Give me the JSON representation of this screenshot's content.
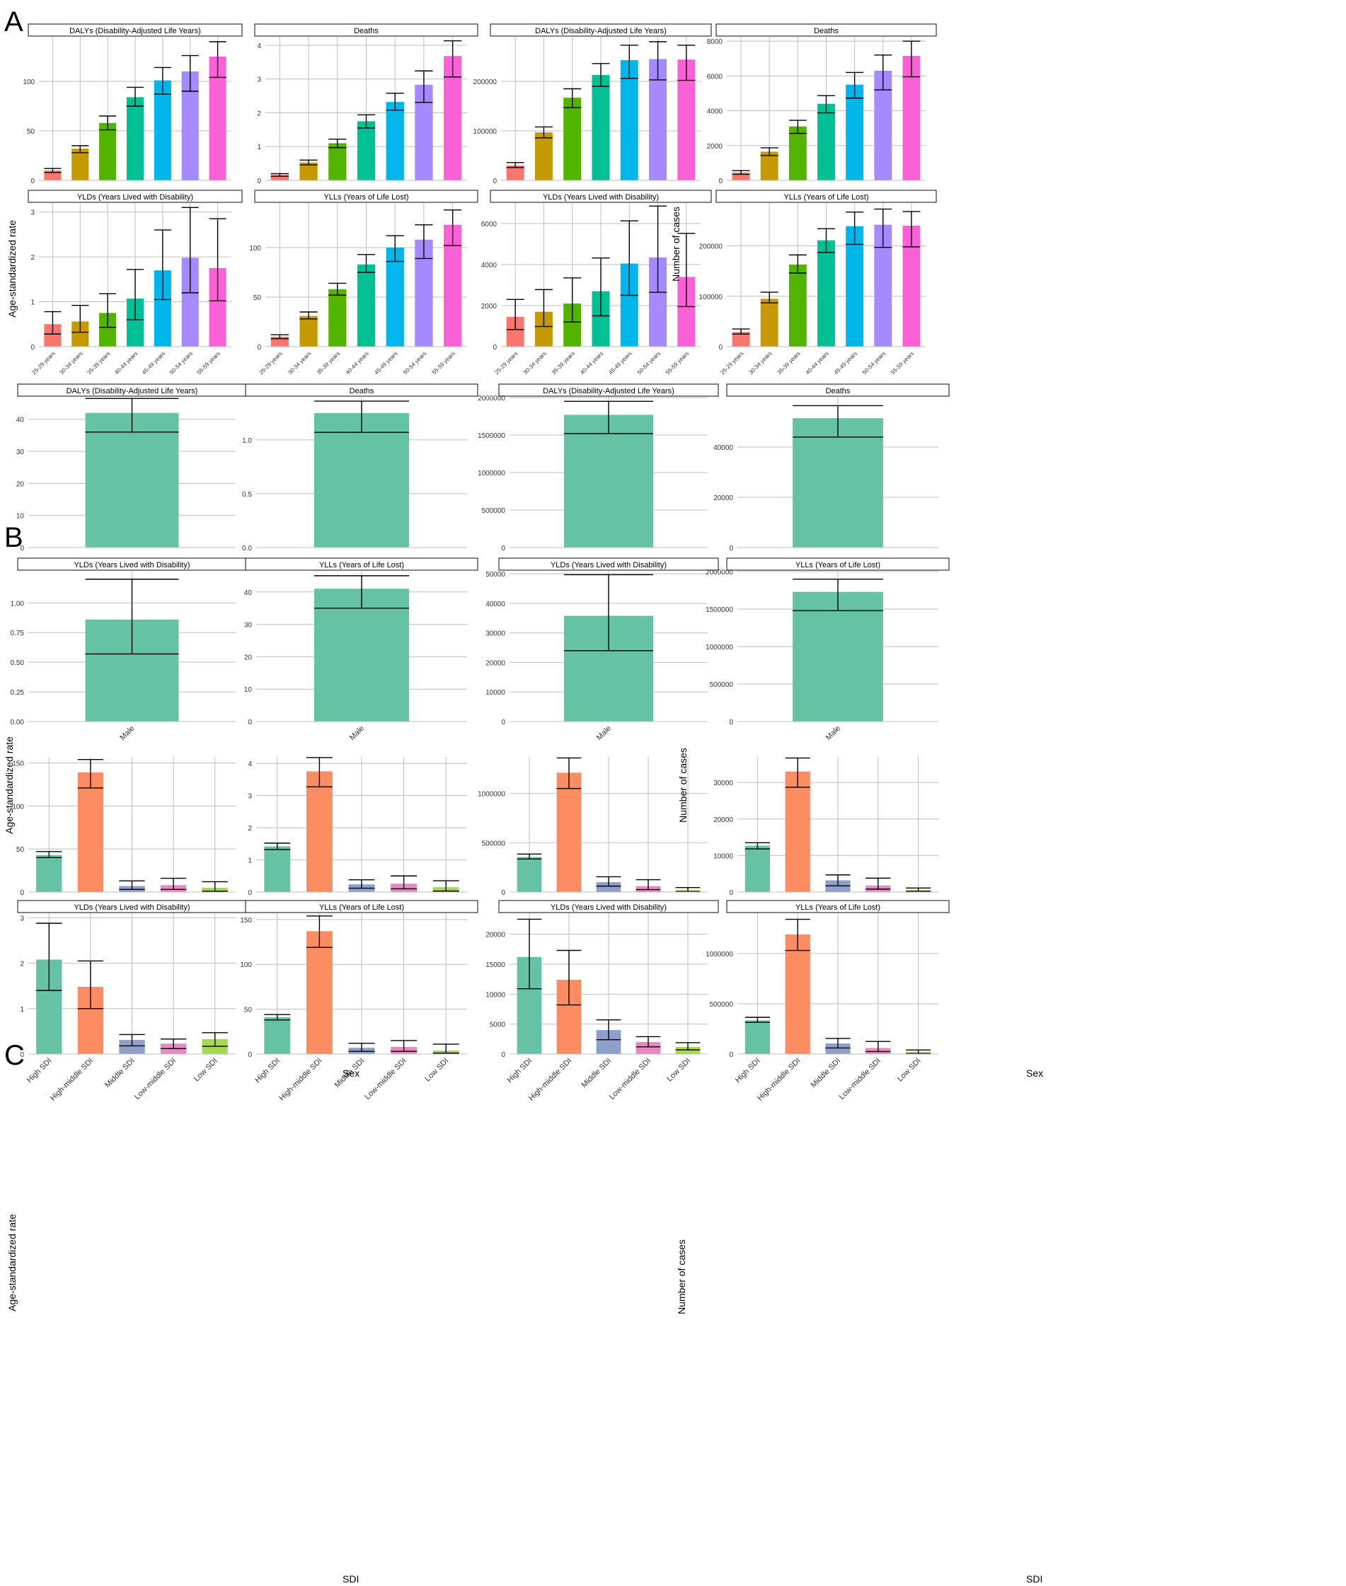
{
  "panel_labels": {
    "A": "A",
    "B": "B",
    "C": "C"
  },
  "y_titles": {
    "rate": "Age-standardized rate",
    "cases": "Number of cases"
  },
  "x_titles": {
    "sex": "Sex",
    "sdi": "SDI"
  },
  "colors": {
    "age": [
      "#F8766D",
      "#C49A00",
      "#53B400",
      "#00C094",
      "#00B6EB",
      "#A58AFF",
      "#FB61D7"
    ],
    "sex": [
      "#66C2A5"
    ],
    "sdi": [
      "#66C2A5",
      "#FC8D62",
      "#8DA0CB",
      "#E78AC3",
      "#A6D854"
    ],
    "strip_border": "#333333",
    "grid": "#bdbdbd",
    "error_bar": "#000000"
  },
  "chart_data": [
    {
      "id": "A-rate-dalys",
      "type": "bar",
      "title": "DALYs (Disability-Adjusted Life Years)",
      "categories": [
        "25-29 years",
        "30-34 years",
        "35-39 years",
        "40-44 years",
        "45-49 years",
        "50-54 years",
        "55-59 years"
      ],
      "values": [
        10,
        32,
        58,
        84,
        101,
        110,
        125
      ],
      "lower": [
        8,
        28,
        51,
        75,
        87,
        90,
        104
      ],
      "upper": [
        12,
        35,
        65,
        94,
        114,
        126,
        140
      ],
      "yticks": [
        0,
        50,
        100
      ],
      "ylim": [
        0,
        145
      ],
      "xlabel": "",
      "ylabel": "Age-standardized rate"
    },
    {
      "id": "A-rate-deaths",
      "type": "bar",
      "title": "Deaths",
      "categories": [
        "25-29 years",
        "30-34 years",
        "35-39 years",
        "40-44 years",
        "45-49 years",
        "50-54 years",
        "55-59 years"
      ],
      "values": [
        0.17,
        0.53,
        1.1,
        1.75,
        2.32,
        2.83,
        3.68
      ],
      "lower": [
        0.12,
        0.46,
        0.97,
        1.55,
        2.08,
        2.31,
        3.06
      ],
      "upper": [
        0.2,
        0.6,
        1.22,
        1.94,
        2.58,
        3.24,
        4.13
      ],
      "yticks": [
        0,
        1,
        2,
        3,
        4
      ],
      "ylim": [
        0,
        4.25
      ],
      "xlabel": "",
      "ylabel": "Age-standardized rate"
    },
    {
      "id": "A-cases-dalys",
      "type": "bar",
      "title": "DALYs (Disability-Adjusted Life Years)",
      "categories": [
        "25-29 years",
        "30-34 years",
        "35-39 years",
        "40-44 years",
        "45-49 years",
        "50-54 years",
        "55-59 years"
      ],
      "values": [
        30000,
        97000,
        167000,
        213000,
        243000,
        245000,
        244000
      ],
      "lower": [
        26000,
        86000,
        147000,
        190000,
        206000,
        203000,
        202000
      ],
      "upper": [
        36000,
        108000,
        185000,
        236000,
        273000,
        280000,
        273000
      ],
      "yticks": [
        0,
        100000,
        200000
      ],
      "ylim": [
        0,
        290000
      ],
      "xlabel": "",
      "ylabel": "Number of cases"
    },
    {
      "id": "A-cases-deaths",
      "type": "bar",
      "title": "Deaths",
      "categories": [
        "25-29 years",
        "30-34 years",
        "35-39 years",
        "40-44 years",
        "45-49 years",
        "50-54 years",
        "55-59 years"
      ],
      "values": [
        450,
        1650,
        3100,
        4400,
        5500,
        6300,
        7150
      ],
      "lower": [
        350,
        1430,
        2700,
        3880,
        4730,
        5200,
        5950
      ],
      "upper": [
        560,
        1870,
        3450,
        4870,
        6200,
        7200,
        8000
      ],
      "yticks": [
        0,
        2000,
        4000,
        6000,
        8000
      ],
      "ylim": [
        0,
        8250
      ],
      "xlabel": "",
      "ylabel": "Number of cases"
    },
    {
      "id": "A-rate-ylds",
      "type": "bar",
      "title": "YLDs (Years Lived with Disability)",
      "categories": [
        "25-29 years",
        "30-34 years",
        "35-39 years",
        "40-44 years",
        "45-49 years",
        "50-54 years",
        "55-59 years"
      ],
      "values": [
        0.5,
        0.56,
        0.75,
        1.07,
        1.7,
        1.98,
        1.75
      ],
      "lower": [
        0.28,
        0.32,
        0.43,
        0.6,
        1.05,
        1.2,
        1.02
      ],
      "upper": [
        0.78,
        0.92,
        1.18,
        1.72,
        2.6,
        3.1,
        2.85
      ],
      "yticks": [
        0,
        1,
        2,
        3
      ],
      "ylim": [
        0,
        3.2
      ],
      "xlabel": "",
      "ylabel": "Age-standardized rate"
    },
    {
      "id": "A-rate-ylls",
      "type": "bar",
      "title": "YLLs (Years of Life Lost)",
      "categories": [
        "25-29 years",
        "30-34 years",
        "35-39 years",
        "40-44 years",
        "45-49 years",
        "50-54 years",
        "55-59 years"
      ],
      "values": [
        10,
        31,
        58,
        83,
        100,
        108,
        123
      ],
      "lower": [
        8,
        28,
        52,
        75,
        86,
        89,
        102
      ],
      "upper": [
        12,
        35,
        64,
        93,
        112,
        123,
        138
      ],
      "yticks": [
        0,
        50,
        100
      ],
      "ylim": [
        0,
        145
      ],
      "xlabel": "",
      "ylabel": "Age-standardized rate"
    },
    {
      "id": "A-cases-ylds",
      "type": "bar",
      "title": "YLDs (Years Lived with Disability)",
      "categories": [
        "25-29 years",
        "30-34 years",
        "35-39 years",
        "40-44 years",
        "45-49 years",
        "50-54 years",
        "55-59 years"
      ],
      "values": [
        1450,
        1700,
        2100,
        2700,
        4050,
        4350,
        3400
      ],
      "lower": [
        830,
        980,
        1200,
        1500,
        2500,
        2650,
        1950
      ],
      "upper": [
        2300,
        2780,
        3350,
        4320,
        6130,
        6850,
        5520
      ],
      "yticks": [
        0,
        2000,
        4000,
        6000
      ],
      "ylim": [
        0,
        7000
      ],
      "xlabel": "",
      "ylabel": "Number of cases"
    },
    {
      "id": "A-cases-ylls",
      "type": "bar",
      "title": "YLLs (Years of Life Lost)",
      "categories": [
        "25-29 years",
        "30-34 years",
        "35-39 years",
        "40-44 years",
        "45-49 years",
        "50-54 years",
        "55-59 years"
      ],
      "values": [
        29000,
        95000,
        163000,
        211000,
        239000,
        242000,
        240000
      ],
      "lower": [
        25000,
        87000,
        146000,
        187000,
        203000,
        197000,
        198000
      ],
      "upper": [
        35000,
        108000,
        182000,
        234000,
        267000,
        273000,
        268000
      ],
      "yticks": [
        0,
        100000,
        200000
      ],
      "ylim": [
        0,
        285000
      ],
      "xlabel": "",
      "ylabel": "Number of cases"
    },
    {
      "id": "B-rate-dalys",
      "type": "bar",
      "title": "DALYs (Disability-Adjusted Life Years)",
      "categories": [
        "Male"
      ],
      "values": [
        42
      ],
      "lower": [
        36
      ],
      "upper": [
        46.5
      ],
      "yticks": [
        0,
        10,
        20,
        30,
        40
      ],
      "ylim": [
        0,
        47
      ],
      "xlabel": "",
      "ylabel": "Age-standardized rate"
    },
    {
      "id": "B-rate-deaths",
      "type": "bar",
      "title": "Deaths",
      "categories": [
        "Male"
      ],
      "values": [
        1.25
      ],
      "lower": [
        1.07
      ],
      "upper": [
        1.36
      ],
      "yticks": [
        0,
        0.5,
        1
      ],
      "ylim": [
        0,
        1.4
      ],
      "ytick_labels": [
        "0.0",
        "0.5",
        "1.0"
      ],
      "xlabel": "",
      "ylabel": "Age-standardized rate"
    },
    {
      "id": "B-cases-dalys",
      "type": "bar",
      "title": "DALYs (Disability-Adjusted Life Years)",
      "categories": [
        "Male"
      ],
      "values": [
        1770000
      ],
      "lower": [
        1520000
      ],
      "upper": [
        1950000
      ],
      "yticks": [
        0,
        500000,
        1000000,
        1500000,
        2000000
      ],
      "ylim": [
        0,
        2010000
      ],
      "xlabel": "",
      "ylabel": "Number of cases"
    },
    {
      "id": "B-cases-deaths",
      "type": "bar",
      "title": "Deaths",
      "categories": [
        "Male"
      ],
      "values": [
        51500
      ],
      "lower": [
        44000
      ],
      "upper": [
        56500
      ],
      "yticks": [
        0,
        20000,
        40000
      ],
      "ylim": [
        0,
        60000
      ],
      "xlabel": "",
      "ylabel": "Number of cases"
    },
    {
      "id": "B-rate-ylds",
      "type": "bar",
      "title": "YLDs (Years Lived with Disability)",
      "categories": [
        "Male"
      ],
      "values": [
        0.86
      ],
      "lower": [
        0.57
      ],
      "upper": [
        1.2
      ],
      "yticks": [
        0,
        0.25,
        0.5,
        0.75,
        1
      ],
      "ylim": [
        0,
        1.27
      ],
      "ytick_labels": [
        "0.00",
        "0.25",
        "0.50",
        "0.75",
        "1.00"
      ],
      "xlabel": "Sex",
      "ylabel": "Age-standardized rate"
    },
    {
      "id": "B-rate-ylls",
      "type": "bar",
      "title": "YLLs (Years of Life Lost)",
      "categories": [
        "Male"
      ],
      "values": [
        41
      ],
      "lower": [
        35
      ],
      "upper": [
        45
      ],
      "yticks": [
        0,
        10,
        20,
        30,
        40
      ],
      "ylim": [
        0,
        46.5
      ],
      "xlabel": "Sex",
      "ylabel": "Age-standardized rate"
    },
    {
      "id": "B-cases-ylds",
      "type": "bar",
      "title": "YLDs (Years Lived with Disability)",
      "categories": [
        "Male"
      ],
      "values": [
        35800
      ],
      "lower": [
        24000
      ],
      "upper": [
        49700
      ],
      "yticks": [
        0,
        10000,
        20000,
        30000,
        40000,
        50000
      ],
      "ylim": [
        0,
        51000
      ],
      "xlabel": "Sex",
      "ylabel": "Number of cases"
    },
    {
      "id": "B-cases-ylls",
      "type": "bar",
      "title": "YLLs (Years of Life Lost)",
      "categories": [
        "Male"
      ],
      "values": [
        1730000
      ],
      "lower": [
        1480000
      ],
      "upper": [
        1900000
      ],
      "yticks": [
        0,
        500000,
        1000000,
        1500000,
        2000000
      ],
      "ylim": [
        0,
        2010000
      ],
      "xlabel": "Sex",
      "ylabel": "Number of cases"
    },
    {
      "id": "C-rate-dalys",
      "type": "bar",
      "title": "",
      "categories": [
        "High SDI",
        "High-middle SDI",
        "Middle SDI",
        "Low-middle SDI",
        "Low SDI"
      ],
      "values": [
        43,
        139,
        7,
        8,
        5
      ],
      "lower": [
        40,
        121,
        3,
        3,
        1
      ],
      "upper": [
        47,
        154,
        13,
        16,
        12
      ],
      "yticks": [
        0,
        50,
        100,
        150
      ],
      "ylim": [
        0,
        157
      ],
      "xlabel": "",
      "ylabel": "Age-standardized rate"
    },
    {
      "id": "C-rate-deaths",
      "type": "bar",
      "title": "",
      "categories": [
        "High SDI",
        "High-middle SDI",
        "Middle SDI",
        "Low-middle SDI",
        "Low SDI"
      ],
      "values": [
        1.42,
        3.75,
        0.24,
        0.26,
        0.15
      ],
      "lower": [
        1.32,
        3.27,
        0.12,
        0.1,
        0.03
      ],
      "upper": [
        1.52,
        4.18,
        0.38,
        0.5,
        0.35
      ],
      "yticks": [
        0,
        1,
        2,
        3,
        4
      ],
      "ylim": [
        0,
        4.2
      ],
      "xlabel": "",
      "ylabel": "Age-standardized rate"
    },
    {
      "id": "C-cases-dalys",
      "type": "bar",
      "title": "",
      "categories": [
        "High SDI",
        "High-middle SDI",
        "Middle SDI",
        "Low-middle SDI",
        "Low SDI"
      ],
      "values": [
        355000,
        1210000,
        100000,
        60000,
        20000
      ],
      "lower": [
        335000,
        1050000,
        60000,
        25000,
        5000
      ],
      "upper": [
        385000,
        1360000,
        155000,
        125000,
        45000
      ],
      "yticks": [
        0,
        500000,
        1000000
      ],
      "ylim": [
        0,
        1370000
      ],
      "xlabel": "",
      "ylabel": "Number of cases"
    },
    {
      "id": "C-cases-deaths",
      "type": "bar",
      "title": "",
      "categories": [
        "High SDI",
        "High-middle SDI",
        "Middle SDI",
        "Low-middle SDI",
        "Low SDI"
      ],
      "values": [
        12700,
        33000,
        3200,
        1800,
        500
      ],
      "lower": [
        11800,
        28700,
        1700,
        800,
        200
      ],
      "upper": [
        13500,
        36700,
        4700,
        3800,
        1100
      ],
      "yticks": [
        0,
        10000,
        20000,
        30000
      ],
      "ylim": [
        0,
        37000
      ],
      "xlabel": "",
      "ylabel": "Number of cases"
    },
    {
      "id": "C-rate-ylds",
      "type": "bar",
      "title": "YLDs (Years Lived with Disability)",
      "categories": [
        "High SDI",
        "High-middle SDI",
        "Middle SDI",
        "Low-middle SDI",
        "Low SDI"
      ],
      "values": [
        2.08,
        1.48,
        0.31,
        0.23,
        0.33
      ],
      "lower": [
        1.4,
        1.0,
        0.18,
        0.12,
        0.17
      ],
      "upper": [
        2.88,
        2.05,
        0.43,
        0.33,
        0.47
      ],
      "yticks": [
        0,
        1,
        2,
        3
      ],
      "ylim": [
        0,
        3.1
      ],
      "xlabel": "SDI",
      "ylabel": "Age-standardized rate"
    },
    {
      "id": "C-rate-ylls",
      "type": "bar",
      "title": "YLLs (Years of Life Lost)",
      "categories": [
        "High SDI",
        "High-middle SDI",
        "Middle SDI",
        "Low-middle SDI",
        "Low SDI"
      ],
      "values": [
        41,
        137,
        7,
        8,
        4
      ],
      "lower": [
        38,
        119,
        3,
        3,
        1
      ],
      "upper": [
        44,
        154,
        12,
        15,
        11
      ],
      "yticks": [
        0,
        50,
        100,
        150
      ],
      "ylim": [
        0,
        157
      ],
      "xlabel": "SDI",
      "ylabel": "Age-standardized rate"
    },
    {
      "id": "C-cases-ylds",
      "type": "bar",
      "title": "YLDs (Years Lived with Disability)",
      "categories": [
        "High SDI",
        "High-middle SDI",
        "Middle SDI",
        "Low-middle SDI",
        "Low SDI"
      ],
      "values": [
        16200,
        12400,
        4000,
        2000,
        1200
      ],
      "lower": [
        10900,
        8200,
        2400,
        1200,
        700
      ],
      "upper": [
        22500,
        17300,
        5700,
        2900,
        1900
      ],
      "yticks": [
        0,
        5000,
        10000,
        15000,
        20000
      ],
      "ylim": [
        0,
        23500
      ],
      "xlabel": "SDI",
      "ylabel": "Number of cases"
    },
    {
      "id": "C-cases-ylls",
      "type": "bar",
      "title": "YLLs (Years of Life Lost)",
      "categories": [
        "High SDI",
        "High-middle SDI",
        "Middle SDI",
        "Low-middle SDI",
        "Low SDI"
      ],
      "values": [
        335000,
        1190000,
        105000,
        60000,
        20000
      ],
      "lower": [
        315000,
        1030000,
        60000,
        25000,
        5000
      ],
      "upper": [
        365000,
        1340000,
        155000,
        125000,
        40000
      ],
      "yticks": [
        0,
        500000,
        1000000
      ],
      "ylim": [
        0,
        1400000
      ],
      "xlabel": "SDI",
      "ylabel": "Number of cases"
    }
  ]
}
